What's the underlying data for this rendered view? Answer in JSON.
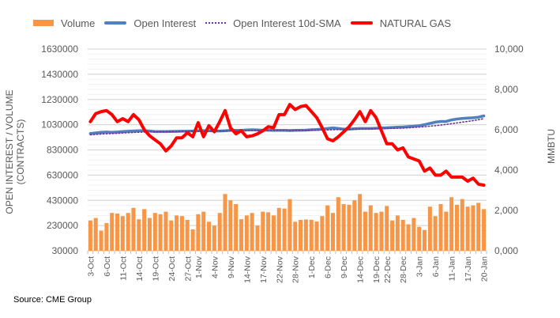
{
  "chart_data": {
    "type": "bar+line",
    "title": "",
    "source": "Source: CME Group",
    "legend": [
      "Volume",
      "Open Interest",
      "Open Interest 10d-SMA",
      "NATURAL GAS"
    ],
    "legend_position": "top",
    "ylabel_left": "OPEN INTEREST / VOLUME (CONTRACTS)",
    "ylabel_right": "MMBTU",
    "ylim_left": [
      30000,
      1630000
    ],
    "ylim_right": [
      0,
      10000
    ],
    "yticks_left": [
      "1630000",
      "1430000",
      "1230000",
      "1030000",
      "830000",
      "630000",
      "430000",
      "230000",
      "30000"
    ],
    "yticks_right": [
      "10,000",
      "8,000",
      "6,000",
      "4,000",
      "2,000",
      "0,000"
    ],
    "xtick_labels": [
      "3-Oct",
      "6-Oct",
      "11-Oct",
      "14-Oct",
      "19-Oct",
      "24-Oct",
      "27-Oct",
      "1-Nov",
      "4-Nov",
      "9-Nov",
      "14-Nov",
      "17-Nov",
      "22-Nov",
      "28-Nov",
      "1-Dec",
      "6-Dec",
      "9-Dec",
      "14-Dec",
      "19-Dec",
      "22-Dec",
      "28-Dec",
      "3-Jan",
      "6-Jan",
      "11-Jan",
      "17-Jan",
      "20-Jan"
    ],
    "n_points": 74,
    "series": [
      {
        "name": "Volume",
        "type": "bar",
        "axis": "left",
        "color": "#f79646",
        "values": [
          270000,
          290000,
          190000,
          250000,
          330000,
          325000,
          305000,
          330000,
          370000,
          280000,
          360000,
          290000,
          330000,
          320000,
          340000,
          270000,
          310000,
          305000,
          275000,
          200000,
          320000,
          340000,
          260000,
          230000,
          330000,
          480000,
          430000,
          400000,
          280000,
          310000,
          330000,
          230000,
          340000,
          335000,
          310000,
          370000,
          365000,
          440000,
          260000,
          275000,
          278000,
          276000,
          262000,
          305000,
          390000,
          330000,
          455000,
          400000,
          395000,
          430000,
          480000,
          340000,
          390000,
          330000,
          340000,
          385000,
          270000,
          310000,
          275000,
          240000,
          290000,
          220000,
          195000,
          380000,
          305000,
          400000,
          340000,
          455000,
          395000,
          440000,
          380000,
          390000,
          410000,
          360000
        ]
      },
      {
        "name": "Open Interest",
        "type": "line",
        "axis": "left",
        "color": "#4f81bd",
        "values": [
          960000,
          965000,
          970000,
          972000,
          970000,
          972000,
          975000,
          978000,
          980000,
          982000,
          982000,
          980000,
          975000,
          975000,
          975000,
          976000,
          977000,
          978000,
          978000,
          980000,
          982000,
          983000,
          982000,
          980000,
          980000,
          982000,
          985000,
          985000,
          985000,
          988000,
          990000,
          988000,
          986000,
          986000,
          985000,
          985000,
          985000,
          984000,
          985000,
          986000,
          987000,
          990000,
          992000,
          995000,
          1000000,
          1005000,
          1000000,
          995000,
          995000,
          998000,
          1000000,
          1000000,
          1000000,
          1002000,
          1004000,
          1006000,
          1008000,
          1010000,
          1012000,
          1015000,
          1018000,
          1022000,
          1030000,
          1040000,
          1050000,
          1055000,
          1055000,
          1068000,
          1075000,
          1080000,
          1082000,
          1085000,
          1090000,
          1100000
        ]
      },
      {
        "name": "Open Interest 10d-SMA",
        "type": "line",
        "style": "dotted",
        "axis": "left",
        "color": "#7030a0",
        "values": [
          950000,
          953000,
          956000,
          958000,
          960000,
          962000,
          964000,
          966000,
          968000,
          970000,
          972000,
          973000,
          974000,
          975000,
          975000,
          976000,
          976000,
          977000,
          977000,
          978000,
          978000,
          979000,
          979000,
          980000,
          980000,
          980000,
          981000,
          981000,
          982000,
          982000,
          983000,
          983000,
          983000,
          984000,
          984000,
          984000,
          984000,
          984000,
          985000,
          985000,
          985000,
          986000,
          987000,
          988000,
          989000,
          990000,
          991000,
          992000,
          993000,
          994000,
          995000,
          996000,
          997000,
          998000,
          999000,
          1000000,
          1001000,
          1002000,
          1003000,
          1005000,
          1008000,
          1011000,
          1014000,
          1018000,
          1022000,
          1027000,
          1032000,
          1038000,
          1044000,
          1050000,
          1056000,
          1062000,
          1070000,
          1078000
        ]
      },
      {
        "name": "NATURAL GAS",
        "type": "line",
        "axis": "right",
        "color": "#ff0000",
        "values": [
          6400,
          6800,
          6900,
          6950,
          6750,
          6400,
          6550,
          6400,
          6750,
          6500,
          6000,
          5700,
          5500,
          5300,
          4950,
          5200,
          5600,
          5600,
          5850,
          5650,
          6350,
          5650,
          6200,
          5900,
          6400,
          6950,
          6100,
          5800,
          5950,
          5650,
          5700,
          5800,
          5950,
          6150,
          6100,
          6750,
          6750,
          7250,
          7000,
          7150,
          7200,
          6900,
          6600,
          6100,
          5550,
          5450,
          5650,
          5900,
          6150,
          6500,
          6900,
          6400,
          6950,
          6600,
          5950,
          5300,
          5300,
          5000,
          5100,
          4650,
          4550,
          4450,
          3950,
          4100,
          3750,
          3750,
          3950,
          3650,
          3650,
          3650,
          3450,
          3600,
          3300,
          3250
        ]
      }
    ]
  }
}
